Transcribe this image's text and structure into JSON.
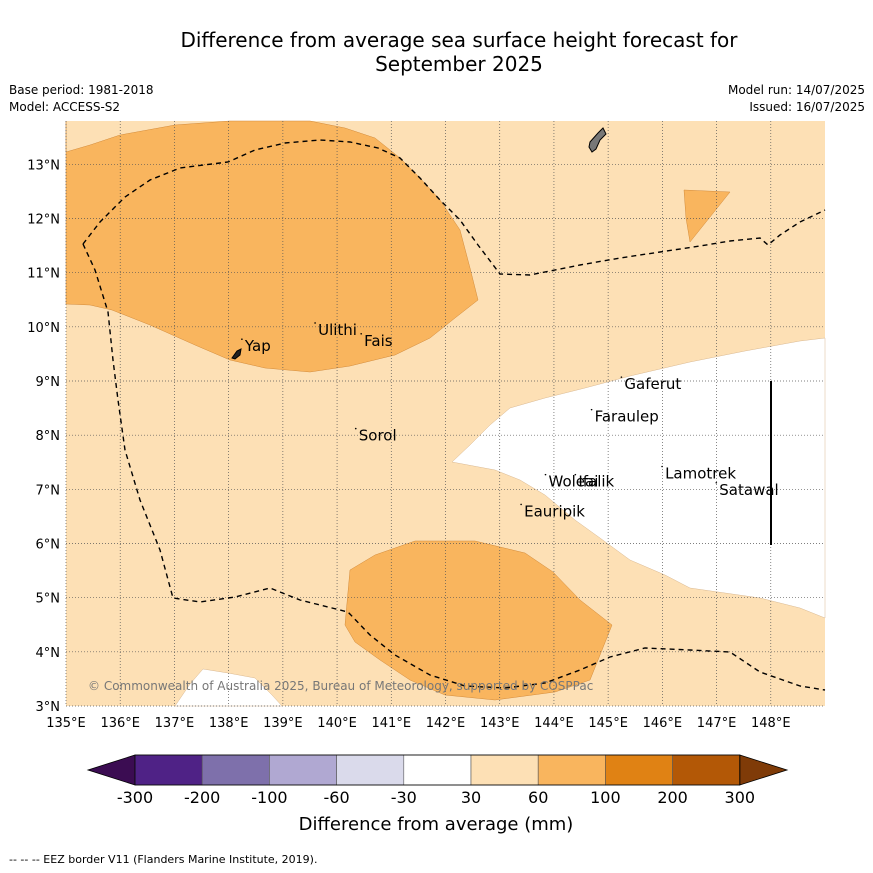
{
  "title_line1": "Difference from average sea surface height forecast for",
  "title_line2": "September 2025",
  "meta": {
    "base_period": "Base period: 1981-2018",
    "model": "Model: ACCESS-S2",
    "model_run": "Model run: 14/07/2025",
    "issued": "Issued: 16/07/2025"
  },
  "copyright": "© Commonwealth of Australia 2025, Bureau of Meteorology, supported by COSPPac",
  "footer": "--  --  -- EEZ border V11 (Flanders Marine Institute, 2019).",
  "map": {
    "lon_range": [
      135,
      149
    ],
    "lat_range": [
      3,
      13.8
    ],
    "lon_ticks": [
      {
        "v": 135,
        "label": "135°E"
      },
      {
        "v": 136,
        "label": "136°E"
      },
      {
        "v": 137,
        "label": "137°E"
      },
      {
        "v": 138,
        "label": "138°E"
      },
      {
        "v": 139,
        "label": "139°E"
      },
      {
        "v": 140,
        "label": "140°E"
      },
      {
        "v": 141,
        "label": "141°E"
      },
      {
        "v": 142,
        "label": "142°E"
      },
      {
        "v": 143,
        "label": "143°E"
      },
      {
        "v": 144,
        "label": "144°E"
      },
      {
        "v": 145,
        "label": "145°E"
      },
      {
        "v": 146,
        "label": "146°E"
      },
      {
        "v": 147,
        "label": "147°E"
      },
      {
        "v": 148,
        "label": "148°E"
      }
    ],
    "lat_ticks": [
      {
        "v": 3,
        "label": "3°N"
      },
      {
        "v": 4,
        "label": "4°N"
      },
      {
        "v": 5,
        "label": "5°N"
      },
      {
        "v": 6,
        "label": "6°N"
      },
      {
        "v": 7,
        "label": "7°N"
      },
      {
        "v": 8,
        "label": "8°N"
      },
      {
        "v": 9,
        "label": "9°N"
      },
      {
        "v": 10,
        "label": "10°N"
      },
      {
        "v": 11,
        "label": "11°N"
      },
      {
        "v": 12,
        "label": "12°N"
      },
      {
        "v": 13,
        "label": "13°N"
      }
    ],
    "places": [
      {
        "name": "Yap",
        "lon": 138.3,
        "lat": 9.55
      },
      {
        "name": "Ulithi",
        "lon": 139.65,
        "lat": 9.85
      },
      {
        "name": "Fais",
        "lon": 140.5,
        "lat": 9.65
      },
      {
        "name": "Sorol",
        "lon": 140.4,
        "lat": 7.9
      },
      {
        "name": "Gaferut",
        "lon": 145.3,
        "lat": 8.85
      },
      {
        "name": "Faraulep",
        "lon": 144.75,
        "lat": 8.25
      },
      {
        "name": "Woleai",
        "lon": 143.9,
        "lat": 7.05
      },
      {
        "name": "Ifalik",
        "lon": 144.45,
        "lat": 7.05
      },
      {
        "name": "Lamotrek",
        "lon": 146.05,
        "lat": 7.2
      },
      {
        "name": "Satawal",
        "lon": 147.05,
        "lat": 6.9
      },
      {
        "name": "Eauripik",
        "lon": 143.45,
        "lat": 6.5
      }
    ]
  },
  "colors": {
    "class_30_60": "#fde0b5",
    "class_60_100": "#f9b55e",
    "neutral": "#ffffff",
    "grid": "#555555",
    "land": "#777777"
  },
  "colorbar": {
    "title": "Difference from average (mm)",
    "tick_labels": [
      "-300",
      "-200",
      "-100",
      "-60",
      "-30",
      "30",
      "60",
      "100",
      "200",
      "300"
    ],
    "colors": [
      "#3b0c52",
      "#4f2286",
      "#7e70ab",
      "#b0a8d2",
      "#dadaeb",
      "#ffffff",
      "#fde0b5",
      "#f9b55e",
      "#e08214",
      "#b35806",
      "#7f3b08"
    ]
  }
}
